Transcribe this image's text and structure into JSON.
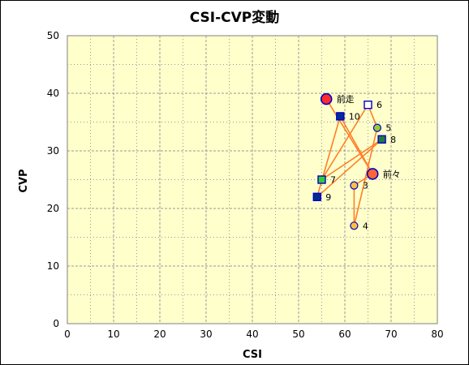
{
  "chart_data": {
    "type": "scatter",
    "title": "CSI-CVP変動",
    "xlabel": "CSI",
    "ylabel": "CVP",
    "xlim": [
      0,
      80
    ],
    "ylim": [
      0,
      50
    ],
    "x_ticks": [
      "0",
      "10",
      "20",
      "30",
      "40",
      "50",
      "60",
      "70",
      "80"
    ],
    "y_ticks": [
      "0",
      "10",
      "20",
      "30",
      "40",
      "50"
    ],
    "grid": true,
    "colors": {
      "plot_bg": "#FFFFCC",
      "grid": "#999999",
      "line": "#FF7F27",
      "marker_edge": "#0000CC",
      "circle_red": "#FF2A2A",
      "circle_orange": "#FF6633",
      "circle_gold": "#FFC040",
      "circle_olive": "#99CC33",
      "square_navy": "#002D8F",
      "square_green": "#33CC33",
      "square_dark_green": "#1F7A3F",
      "square_open": "#FFFFFF"
    },
    "points": [
      {
        "label": "前走",
        "x": 56,
        "y": 39,
        "shape": "circle",
        "size": "large",
        "fill": "circle_red"
      },
      {
        "label": "6",
        "x": 65,
        "y": 38,
        "shape": "square",
        "size": "small",
        "fill": "square_open"
      },
      {
        "label": "10",
        "x": 59,
        "y": 36,
        "shape": "square",
        "size": "small",
        "fill": "square_navy"
      },
      {
        "label": "5",
        "x": 67,
        "y": 34,
        "shape": "circle",
        "size": "small",
        "fill": "circle_olive"
      },
      {
        "label": "8",
        "x": 68,
        "y": 32,
        "shape": "square",
        "size": "small",
        "fill": "square_dark_green"
      },
      {
        "label": "前々",
        "x": 66,
        "y": 26,
        "shape": "circle",
        "size": "large",
        "fill": "circle_orange"
      },
      {
        "label": "7",
        "x": 55,
        "y": 25,
        "shape": "square",
        "size": "small",
        "fill": "square_green"
      },
      {
        "label": "3",
        "x": 62,
        "y": 24,
        "shape": "circle",
        "size": "small",
        "fill": "circle_gold"
      },
      {
        "label": "9",
        "x": 54,
        "y": 22,
        "shape": "square",
        "size": "small",
        "fill": "square_navy"
      },
      {
        "label": "4",
        "x": 62,
        "y": 17,
        "shape": "circle",
        "size": "small",
        "fill": "circle_gold"
      }
    ],
    "connections": [
      [
        "前走",
        "前々"
      ],
      [
        "前々",
        "3"
      ],
      [
        "3",
        "4"
      ],
      [
        "4",
        "5"
      ],
      [
        "5",
        "6"
      ],
      [
        "6",
        "7"
      ],
      [
        "7",
        "8"
      ],
      [
        "8",
        "9"
      ],
      [
        "9",
        "10"
      ],
      [
        "10",
        "前々"
      ]
    ]
  }
}
